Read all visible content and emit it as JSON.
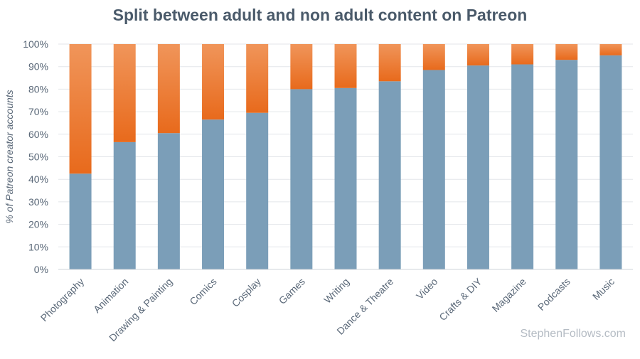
{
  "chart_data": {
    "type": "bar",
    "stacked": true,
    "title": "Split between adult and non adult content on Patreon",
    "ylabel": "% of Patreon creator accounts",
    "xlabel": "",
    "ylim": [
      0,
      100
    ],
    "yticks": [
      "0%",
      "10%",
      "20%",
      "30%",
      "40%",
      "50%",
      "60%",
      "70%",
      "80%",
      "90%",
      "100%"
    ],
    "grid": true,
    "categories": [
      "Photography",
      "Animation",
      "Drawing & Painting",
      "Comics",
      "Cosplay",
      "Games",
      "Writing",
      "Dance & Theatre",
      "Video",
      "Crafts & DIY",
      "Magazine",
      "Podcasts",
      "Music"
    ],
    "series": [
      {
        "values": [
          42.5,
          56.5,
          60.5,
          66.5,
          69.5,
          80,
          80.5,
          83.5,
          88.5,
          90.5,
          91,
          93,
          95
        ],
        "color": "#7b9eb8"
      },
      {
        "values": [
          57.5,
          43.5,
          39.5,
          33.5,
          30.5,
          20,
          19.5,
          16.5,
          11.5,
          9.5,
          9,
          7,
          5
        ],
        "color": "#f07e2a"
      }
    ]
  },
  "watermark": "StephenFollows.com"
}
